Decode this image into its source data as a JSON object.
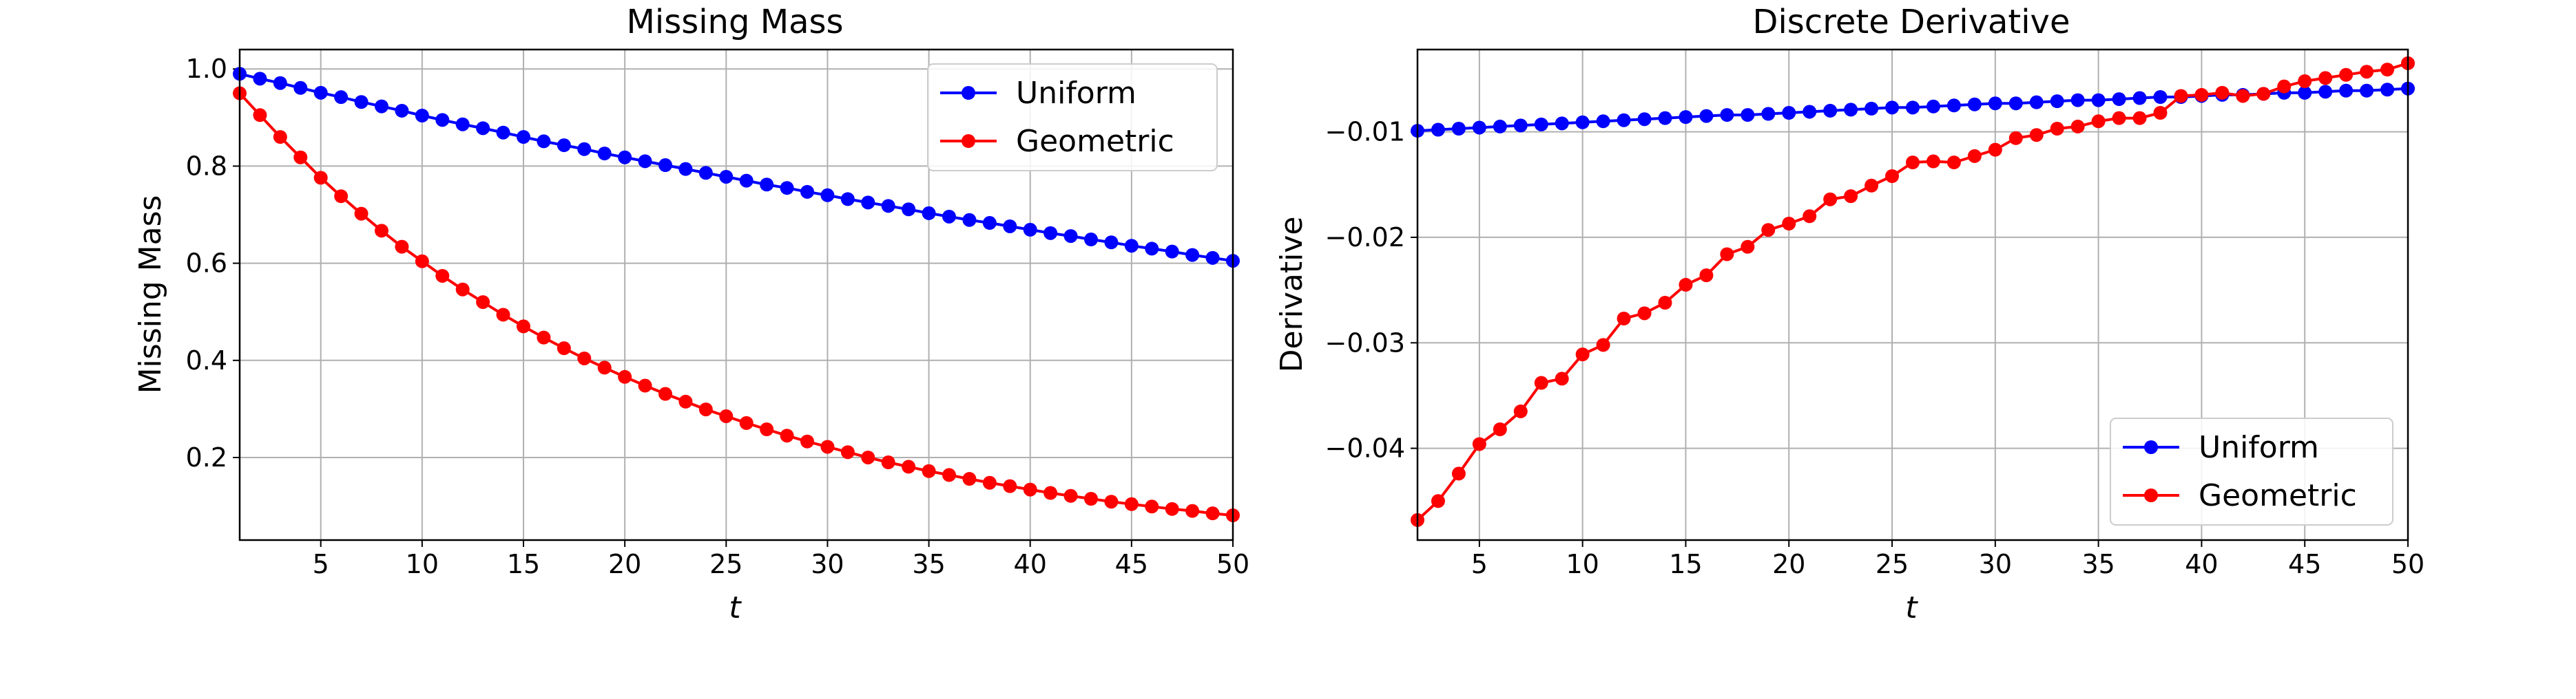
{
  "chart_data": [
    {
      "type": "line",
      "title": "Missing Mass",
      "xlabel": "t",
      "ylabel": "Missing Mass",
      "xlim": [
        1,
        50
      ],
      "ylim": [
        0.03,
        1.04
      ],
      "xticks": [
        5,
        10,
        15,
        20,
        25,
        30,
        35,
        40,
        45,
        50
      ],
      "yticks": [
        0.2,
        0.4,
        0.6,
        0.8,
        1.0
      ],
      "ytick_labels": [
        "0.2",
        "0.4",
        "0.6",
        "0.8",
        "1.0"
      ],
      "grid": true,
      "legend_position": "top-right",
      "x": [
        1,
        2,
        3,
        4,
        5,
        6,
        7,
        8,
        9,
        10,
        11,
        12,
        13,
        14,
        15,
        16,
        17,
        18,
        19,
        20,
        21,
        22,
        23,
        24,
        25,
        26,
        27,
        28,
        29,
        30,
        31,
        32,
        33,
        34,
        35,
        36,
        37,
        38,
        39,
        40,
        41,
        42,
        43,
        44,
        45,
        46,
        47,
        48,
        49,
        50
      ],
      "series": [
        {
          "name": "Uniform",
          "color": "#0000ff",
          "values": [
            0.99,
            0.98,
            0.971,
            0.961,
            0.951,
            0.942,
            0.932,
            0.923,
            0.914,
            0.904,
            0.895,
            0.886,
            0.878,
            0.869,
            0.86,
            0.851,
            0.843,
            0.835,
            0.826,
            0.818,
            0.81,
            0.802,
            0.794,
            0.786,
            0.778,
            0.77,
            0.762,
            0.755,
            0.747,
            0.74,
            0.732,
            0.725,
            0.718,
            0.711,
            0.703,
            0.696,
            0.689,
            0.683,
            0.676,
            0.669,
            0.662,
            0.656,
            0.649,
            0.643,
            0.636,
            0.63,
            0.624,
            0.617,
            0.611,
            0.605
          ]
        },
        {
          "name": "Geometric",
          "color": "#ff0000",
          "values": [
            0.95,
            0.905,
            0.86,
            0.818,
            0.776,
            0.738,
            0.702,
            0.667,
            0.634,
            0.604,
            0.574,
            0.546,
            0.52,
            0.494,
            0.47,
            0.447,
            0.425,
            0.404,
            0.385,
            0.366,
            0.348,
            0.331,
            0.315,
            0.299,
            0.285,
            0.271,
            0.258,
            0.245,
            0.233,
            0.222,
            0.211,
            0.2,
            0.19,
            0.181,
            0.172,
            0.164,
            0.156,
            0.148,
            0.141,
            0.134,
            0.127,
            0.121,
            0.115,
            0.109,
            0.104,
            0.099,
            0.094,
            0.09,
            0.085,
            0.081
          ]
        }
      ]
    },
    {
      "type": "line",
      "title": "Discrete Derivative",
      "xlabel": "t",
      "ylabel": "Derivative",
      "xlim": [
        2,
        50
      ],
      "ylim": [
        -0.0487,
        -0.0022
      ],
      "xticks": [
        5,
        10,
        15,
        20,
        25,
        30,
        35,
        40,
        45,
        50
      ],
      "yticks": [
        -0.04,
        -0.03,
        -0.02,
        -0.01
      ],
      "ytick_labels": [
        "−0.04",
        "−0.03",
        "−0.02",
        "−0.01"
      ],
      "grid": true,
      "legend_position": "bottom-right",
      "x": [
        2,
        3,
        4,
        5,
        6,
        7,
        8,
        9,
        10,
        11,
        12,
        13,
        14,
        15,
        16,
        17,
        18,
        19,
        20,
        21,
        22,
        23,
        24,
        25,
        26,
        27,
        28,
        29,
        30,
        31,
        32,
        33,
        34,
        35,
        36,
        37,
        38,
        39,
        40,
        41,
        42,
        43,
        44,
        45,
        46,
        47,
        48,
        49,
        50
      ],
      "series": [
        {
          "name": "Uniform",
          "color": "#0000ff",
          "values": [
            -0.0099,
            -0.0098,
            -0.0097,
            -0.0096,
            -0.0095,
            -0.0094,
            -0.0093,
            -0.0092,
            -0.0091,
            -0.009,
            -0.0089,
            -0.0088,
            -0.0087,
            -0.0086,
            -0.0085,
            -0.0084,
            -0.0084,
            -0.0083,
            -0.0082,
            -0.0081,
            -0.008,
            -0.0079,
            -0.0078,
            -0.0077,
            -0.0077,
            -0.0076,
            -0.0075,
            -0.0074,
            -0.0073,
            -0.0073,
            -0.0072,
            -0.0071,
            -0.007,
            -0.007,
            -0.0069,
            -0.0068,
            -0.0067,
            -0.0067,
            -0.0066,
            -0.0065,
            -0.0065,
            -0.0064,
            -0.0063,
            -0.0063,
            -0.0062,
            -0.0061,
            -0.0061,
            -0.006,
            -0.0059
          ]
        },
        {
          "name": "Geometric",
          "color": "#ff0000",
          "values": [
            -0.0468,
            -0.045,
            -0.0424,
            -0.0396,
            -0.0382,
            -0.0365,
            -0.0338,
            -0.0334,
            -0.0311,
            -0.0302,
            -0.0277,
            -0.0272,
            -0.0262,
            -0.0245,
            -0.0236,
            -0.0216,
            -0.0209,
            -0.0193,
            -0.0187,
            -0.018,
            -0.0164,
            -0.0161,
            -0.0151,
            -0.0142,
            -0.0129,
            -0.0128,
            -0.0129,
            -0.0123,
            -0.0117,
            -0.0106,
            -0.0103,
            -0.0097,
            -0.0095,
            -0.009,
            -0.0087,
            -0.0087,
            -0.0082,
            -0.0066,
            -0.0065,
            -0.0063,
            -0.0066,
            -0.0064,
            -0.0057,
            -0.0052,
            -0.0049,
            -0.0046,
            -0.0043,
            -0.0041,
            -0.0035
          ]
        }
      ]
    }
  ]
}
